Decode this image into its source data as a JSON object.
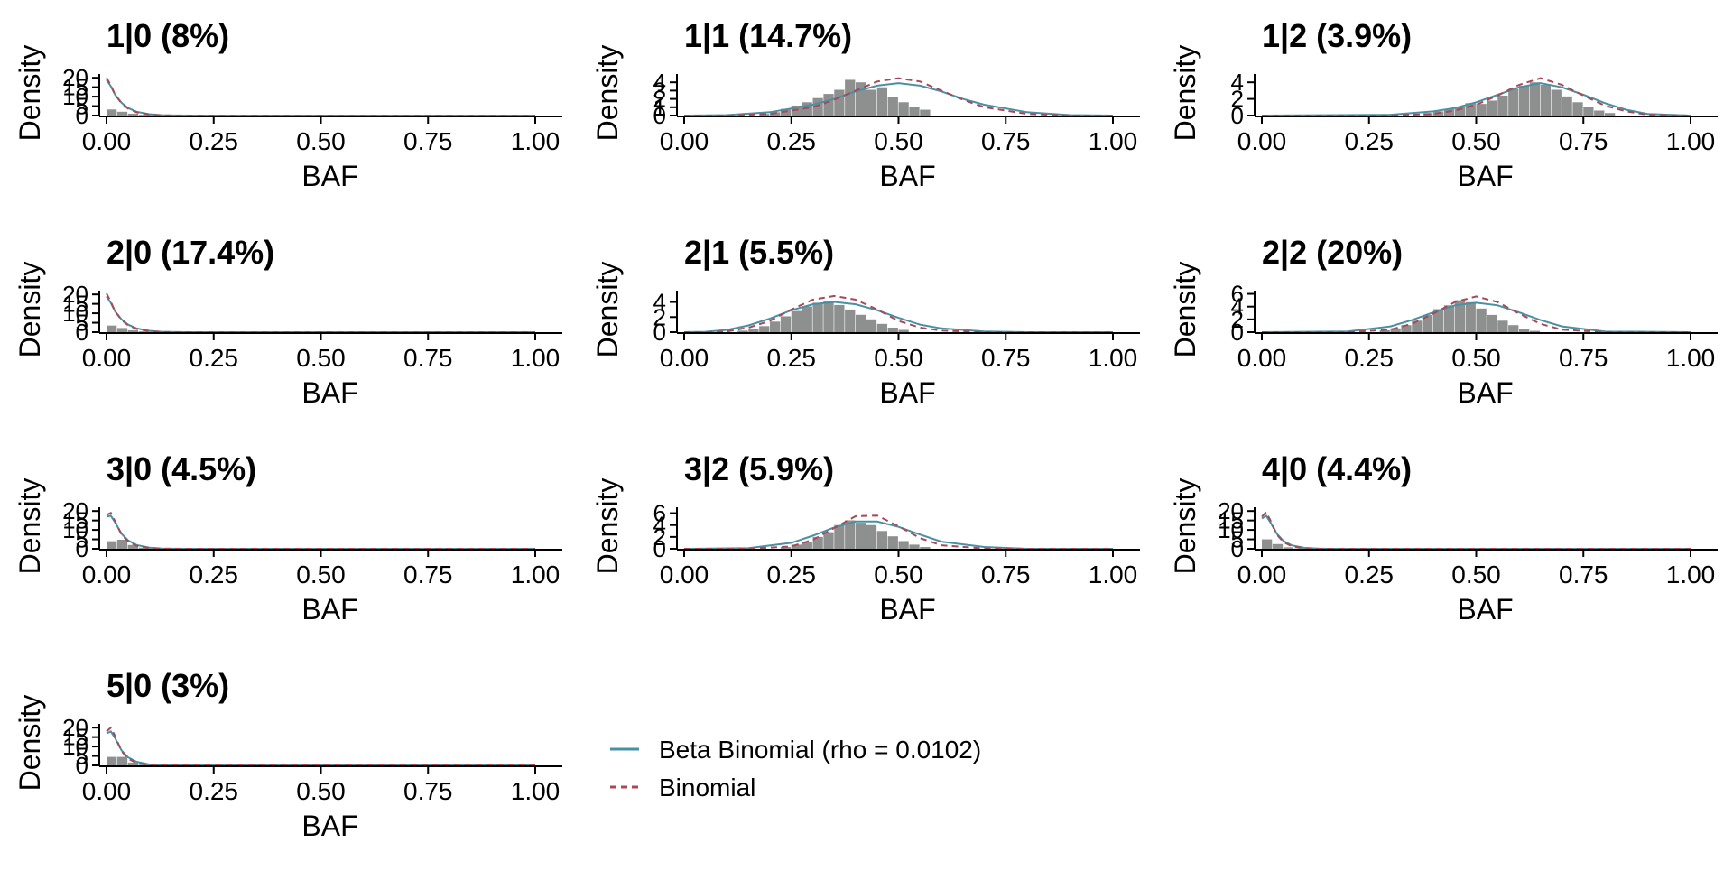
{
  "colors": {
    "beta_binomial": "#4a90a4",
    "binomial": "#a84a55",
    "histogram": "#8e9090",
    "axis": "#000000"
  },
  "legend": {
    "items": [
      {
        "label": "Beta Binomial (rho = 0.0102)",
        "style": "solid",
        "color": "#4a90a4"
      },
      {
        "label": "Binomial",
        "style": "dashed",
        "color": "#a84a55"
      }
    ]
  },
  "chart_data": [
    {
      "type": "histogram",
      "title": "1|0 (8%)",
      "xlabel": "BAF",
      "ylabel": "Density",
      "xlim": [
        0,
        1
      ],
      "ylim": [
        0,
        22
      ],
      "xticks": [
        "0.00",
        "0.25",
        "0.50",
        "0.75",
        "1.00"
      ],
      "yticks": [
        0,
        5,
        10,
        15,
        20
      ],
      "bins": {
        "width": 0.025,
        "start": 0,
        "values": [
          3.2,
          2.0,
          1.0,
          0.4,
          0.2
        ]
      },
      "series": [
        {
          "name": "Beta Binomial (rho = 0.0102)",
          "x": [
            0,
            0.01,
            0.02,
            0.035,
            0.05,
            0.07,
            0.1,
            0.13,
            0.16,
            0.2,
            1.0
          ],
          "values": [
            19,
            15.5,
            11,
            6.8,
            4,
            2,
            0.7,
            0.2,
            0.05,
            0,
            0
          ]
        },
        {
          "name": "Binomial",
          "x": [
            0,
            0.01,
            0.02,
            0.035,
            0.05,
            0.07,
            0.1,
            0.13,
            0.16,
            0.2,
            1.0
          ],
          "values": [
            20,
            16,
            11,
            6.5,
            3.7,
            1.7,
            0.5,
            0.1,
            0.02,
            0,
            0
          ]
        }
      ]
    },
    {
      "type": "histogram",
      "title": "1|1 (14.7%)",
      "xlabel": "BAF",
      "ylabel": "Density",
      "xlim": [
        0,
        1
      ],
      "ylim": [
        0,
        5
      ],
      "xticks": [
        "0.00",
        "0.25",
        "0.50",
        "0.75",
        "1.00"
      ],
      "yticks": [
        0,
        1,
        2,
        3,
        4
      ],
      "bins": {
        "width": 0.025,
        "start": 0.175,
        "values": [
          0.2,
          0.4,
          0.8,
          1.2,
          1.6,
          2.1,
          2.6,
          3.1,
          4.3,
          4.0,
          3.1,
          3.4,
          2.2,
          1.6,
          1.0,
          0.7
        ]
      },
      "series": [
        {
          "name": "Beta Binomial (rho = 0.0102)",
          "x": [
            0,
            0.1,
            0.2,
            0.3,
            0.35,
            0.4,
            0.45,
            0.5,
            0.55,
            0.6,
            0.65,
            0.7,
            0.8,
            0.9,
            1.0
          ],
          "values": [
            0,
            0.05,
            0.4,
            1.3,
            2.0,
            2.9,
            3.6,
            3.9,
            3.6,
            2.9,
            2.0,
            1.3,
            0.4,
            0.05,
            0
          ]
        },
        {
          "name": "Binomial",
          "x": [
            0,
            0.1,
            0.2,
            0.3,
            0.35,
            0.4,
            0.45,
            0.5,
            0.55,
            0.6,
            0.65,
            0.7,
            0.8,
            0.9,
            1.0
          ],
          "values": [
            0,
            0,
            0.2,
            1.0,
            1.9,
            3.0,
            4.1,
            4.5,
            4.1,
            3.0,
            1.9,
            1.0,
            0.2,
            0,
            0
          ]
        }
      ]
    },
    {
      "type": "histogram",
      "title": "1|2 (3.9%)",
      "xlabel": "BAF",
      "ylabel": "Density",
      "xlim": [
        0,
        1
      ],
      "ylim": [
        0,
        5
      ],
      "xticks": [
        "0.00",
        "0.25",
        "0.50",
        "0.75",
        "1.00"
      ],
      "yticks": [
        0,
        2,
        4
      ],
      "bins": {
        "width": 0.025,
        "start": 0.375,
        "values": [
          0.3,
          0.5,
          0.8,
          1.0,
          1.5,
          1.4,
          1.8,
          2.4,
          3.2,
          3.6,
          4.0,
          3.7,
          3.1,
          2.3,
          1.6,
          1.0,
          0.6,
          0.3
        ]
      },
      "series": [
        {
          "name": "Beta Binomial (rho = 0.0102)",
          "x": [
            0,
            0.3,
            0.4,
            0.45,
            0.5,
            0.55,
            0.6,
            0.65,
            0.7,
            0.75,
            0.8,
            0.85,
            0.9,
            1.0
          ],
          "values": [
            0,
            0.1,
            0.5,
            0.9,
            1.6,
            2.5,
            3.4,
            3.9,
            3.4,
            2.5,
            1.5,
            0.7,
            0.2,
            0
          ]
        },
        {
          "name": "Binomial",
          "x": [
            0,
            0.3,
            0.4,
            0.45,
            0.5,
            0.55,
            0.6,
            0.65,
            0.7,
            0.75,
            0.8,
            0.85,
            0.9,
            1.0
          ],
          "values": [
            0,
            0,
            0.2,
            0.6,
            1.3,
            2.4,
            3.7,
            4.5,
            3.7,
            2.4,
            1.2,
            0.5,
            0.1,
            0
          ]
        }
      ]
    },
    {
      "type": "histogram",
      "title": "2|0 (17.4%)",
      "xlabel": "BAF",
      "ylabel": "Density",
      "xlim": [
        0,
        1
      ],
      "ylim": [
        0,
        22
      ],
      "xticks": [
        "0.00",
        "0.25",
        "0.50",
        "0.75",
        "1.00"
      ],
      "yticks": [
        0,
        5,
        10,
        15,
        20
      ],
      "bins": {
        "width": 0.025,
        "start": 0,
        "values": [
          3.5,
          2.2,
          1.0,
          0.4,
          0.2
        ]
      },
      "series": [
        {
          "name": "Beta Binomial (rho = 0.0102)",
          "x": [
            0,
            0.01,
            0.02,
            0.035,
            0.05,
            0.07,
            0.1,
            0.13,
            0.16,
            0.2,
            1.0
          ],
          "values": [
            19,
            15.5,
            11,
            6.8,
            4,
            2,
            0.7,
            0.2,
            0.05,
            0,
            0
          ]
        },
        {
          "name": "Binomial",
          "x": [
            0,
            0.01,
            0.02,
            0.035,
            0.05,
            0.07,
            0.1,
            0.13,
            0.16,
            0.2,
            1.0
          ],
          "values": [
            20.5,
            16,
            11,
            6.5,
            3.7,
            1.7,
            0.5,
            0.1,
            0.02,
            0,
            0
          ]
        }
      ]
    },
    {
      "type": "histogram",
      "title": "2|1 (5.5%)",
      "xlabel": "BAF",
      "ylabel": "Density",
      "xlim": [
        0,
        1
      ],
      "ylim": [
        0,
        5.5
      ],
      "xticks": [
        "0.00",
        "0.25",
        "0.50",
        "0.75",
        "1.00"
      ],
      "yticks": [
        0,
        2,
        4
      ],
      "bins": {
        "width": 0.025,
        "start": 0.125,
        "values": [
          0.2,
          0.4,
          0.8,
          1.4,
          2.1,
          2.8,
          3.4,
          3.9,
          4.1,
          3.6,
          3.0,
          2.3,
          1.7,
          1.1,
          0.6,
          0.3
        ]
      },
      "series": [
        {
          "name": "Beta Binomial (rho = 0.0102)",
          "x": [
            0,
            0.05,
            0.1,
            0.15,
            0.2,
            0.25,
            0.3,
            0.35,
            0.4,
            0.45,
            0.5,
            0.55,
            0.6,
            0.7,
            0.8,
            1.0
          ],
          "values": [
            0,
            0.05,
            0.3,
            0.9,
            1.8,
            2.9,
            3.7,
            4.0,
            3.7,
            2.9,
            1.9,
            1.0,
            0.5,
            0.1,
            0,
            0
          ]
        },
        {
          "name": "Binomial",
          "x": [
            0,
            0.05,
            0.1,
            0.15,
            0.2,
            0.25,
            0.3,
            0.35,
            0.4,
            0.45,
            0.5,
            0.55,
            0.6,
            0.7,
            0.8,
            1.0
          ],
          "values": [
            0,
            0,
            0.1,
            0.6,
            1.5,
            3.0,
            4.3,
            4.8,
            4.3,
            3.0,
            1.5,
            0.6,
            0.2,
            0,
            0,
            0
          ]
        }
      ]
    },
    {
      "type": "histogram",
      "title": "2|2 (20%)",
      "xlabel": "BAF",
      "ylabel": "Density",
      "xlim": [
        0,
        1
      ],
      "ylim": [
        0,
        6.5
      ],
      "xticks": [
        "0.00",
        "0.25",
        "0.50",
        "0.75",
        "1.00"
      ],
      "yticks": [
        0,
        2,
        4,
        6
      ],
      "bins": {
        "width": 0.025,
        "start": 0.275,
        "values": [
          0.3,
          0.6,
          1.1,
          1.8,
          2.7,
          3.6,
          4.2,
          5.0,
          4.7,
          3.7,
          2.7,
          1.8,
          1.1,
          0.5,
          0.2
        ]
      },
      "series": [
        {
          "name": "Beta Binomial (rho = 0.0102)",
          "x": [
            0,
            0.2,
            0.3,
            0.35,
            0.4,
            0.45,
            0.5,
            0.55,
            0.6,
            0.65,
            0.7,
            0.8,
            1.0
          ],
          "values": [
            0,
            0.1,
            0.9,
            1.9,
            3.1,
            4.2,
            4.6,
            4.2,
            3.1,
            1.9,
            0.9,
            0.1,
            0
          ]
        },
        {
          "name": "Binomial",
          "x": [
            0,
            0.2,
            0.3,
            0.35,
            0.4,
            0.45,
            0.5,
            0.55,
            0.6,
            0.65,
            0.7,
            0.8,
            1.0
          ],
          "values": [
            0,
            0,
            0.4,
            1.3,
            2.9,
            4.7,
            5.6,
            4.7,
            2.9,
            1.3,
            0.4,
            0,
            0
          ]
        }
      ]
    },
    {
      "type": "histogram",
      "title": "3|0 (4.5%)",
      "xlabel": "BAF",
      "ylabel": "Density",
      "xlim": [
        0,
        1
      ],
      "ylim": [
        0,
        22
      ],
      "xticks": [
        "0.00",
        "0.25",
        "0.50",
        "0.75",
        "1.00"
      ],
      "yticks": [
        0,
        5,
        10,
        15,
        20
      ],
      "bins": {
        "width": 0.025,
        "start": 0,
        "values": [
          4.0,
          4.8,
          2.0,
          0.6,
          0.2
        ]
      },
      "series": [
        {
          "name": "Beta Binomial (rho = 0.0102)",
          "x": [
            0,
            0.01,
            0.02,
            0.035,
            0.05,
            0.07,
            0.1,
            0.13,
            0.16,
            0.2,
            1.0
          ],
          "values": [
            17,
            17.5,
            14,
            8,
            4.5,
            2,
            0.6,
            0.15,
            0.03,
            0,
            0
          ]
        },
        {
          "name": "Binomial",
          "x": [
            0,
            0.01,
            0.02,
            0.035,
            0.05,
            0.07,
            0.1,
            0.13,
            0.16,
            0.2,
            1.0
          ],
          "values": [
            18,
            19,
            14.5,
            7.5,
            4,
            1.6,
            0.4,
            0.08,
            0.01,
            0,
            0
          ]
        }
      ]
    },
    {
      "type": "histogram",
      "title": "3|2 (5.9%)",
      "xlabel": "BAF",
      "ylabel": "Density",
      "xlim": [
        0,
        1
      ],
      "ylim": [
        0,
        7
      ],
      "xticks": [
        "0.00",
        "0.25",
        "0.50",
        "0.75",
        "1.00"
      ],
      "yticks": [
        0,
        2,
        4,
        6
      ],
      "bins": {
        "width": 0.025,
        "start": 0.225,
        "values": [
          0.3,
          0.7,
          1.2,
          2.0,
          2.8,
          4.0,
          4.8,
          4.4,
          4.0,
          3.0,
          2.1,
          1.3,
          0.7,
          0.3
        ]
      },
      "series": [
        {
          "name": "Beta Binomial (rho = 0.0102)",
          "x": [
            0,
            0.15,
            0.25,
            0.3,
            0.35,
            0.4,
            0.45,
            0.5,
            0.55,
            0.6,
            0.7,
            0.8,
            1.0
          ],
          "values": [
            0,
            0.1,
            1.0,
            2.2,
            3.6,
            4.6,
            4.6,
            3.7,
            2.4,
            1.2,
            0.3,
            0,
            0
          ]
        },
        {
          "name": "Binomial",
          "x": [
            0,
            0.15,
            0.25,
            0.3,
            0.35,
            0.4,
            0.45,
            0.5,
            0.55,
            0.6,
            0.7,
            0.8,
            1.0
          ],
          "values": [
            0,
            0,
            0.4,
            1.5,
            3.5,
            5.5,
            5.6,
            3.8,
            1.8,
            0.6,
            0.05,
            0,
            0
          ]
        }
      ]
    },
    {
      "type": "histogram",
      "title": "4|0 (4.4%)",
      "xlabel": "BAF",
      "ylabel": "Density",
      "xlim": [
        0,
        1
      ],
      "ylim": [
        0,
        22
      ],
      "xticks": [
        "0.00",
        "0.25",
        "0.50",
        "0.75",
        "1.00"
      ],
      "yticks": [
        0,
        5,
        10,
        15,
        20
      ],
      "bins": {
        "width": 0.025,
        "start": 0,
        "values": [
          5.0,
          2.5,
          0.8,
          0.2
        ]
      },
      "series": [
        {
          "name": "Beta Binomial (rho = 0.0102)",
          "x": [
            0,
            0.01,
            0.02,
            0.035,
            0.05,
            0.07,
            0.1,
            0.13,
            0.16,
            0.2,
            1.0
          ],
          "values": [
            16,
            17.5,
            14,
            8,
            4.2,
            1.8,
            0.5,
            0.1,
            0.02,
            0,
            0
          ]
        },
        {
          "name": "Binomial",
          "x": [
            0,
            0.01,
            0.02,
            0.035,
            0.05,
            0.07,
            0.1,
            0.13,
            0.16,
            0.2,
            1.0
          ],
          "values": [
            17,
            19.5,
            15,
            7.5,
            3.6,
            1.3,
            0.3,
            0.05,
            0.01,
            0,
            0
          ]
        }
      ]
    },
    {
      "type": "histogram",
      "title": "5|0 (3%)",
      "xlabel": "BAF",
      "ylabel": "Density",
      "xlim": [
        0,
        1
      ],
      "ylim": [
        0,
        22
      ],
      "xticks": [
        "0.00",
        "0.25",
        "0.50",
        "0.75",
        "1.00"
      ],
      "yticks": [
        0,
        5,
        10,
        15,
        20
      ],
      "bins": {
        "width": 0.025,
        "start": 0,
        "values": [
          4.5,
          4.5,
          1.5,
          0.4,
          0.1
        ]
      },
      "series": [
        {
          "name": "Beta Binomial (rho = 0.0102)",
          "x": [
            0,
            0.01,
            0.02,
            0.035,
            0.05,
            0.07,
            0.1,
            0.13,
            0.16,
            0.2,
            1.0
          ],
          "values": [
            17,
            18,
            14.5,
            8,
            4.3,
            1.9,
            0.5,
            0.1,
            0.02,
            0,
            0
          ]
        },
        {
          "name": "Binomial",
          "x": [
            0,
            0.01,
            0.02,
            0.035,
            0.05,
            0.07,
            0.1,
            0.13,
            0.16,
            0.2,
            1.0
          ],
          "values": [
            18,
            20,
            15.5,
            7.6,
            3.6,
            1.3,
            0.3,
            0.05,
            0.01,
            0,
            0
          ]
        }
      ]
    }
  ]
}
